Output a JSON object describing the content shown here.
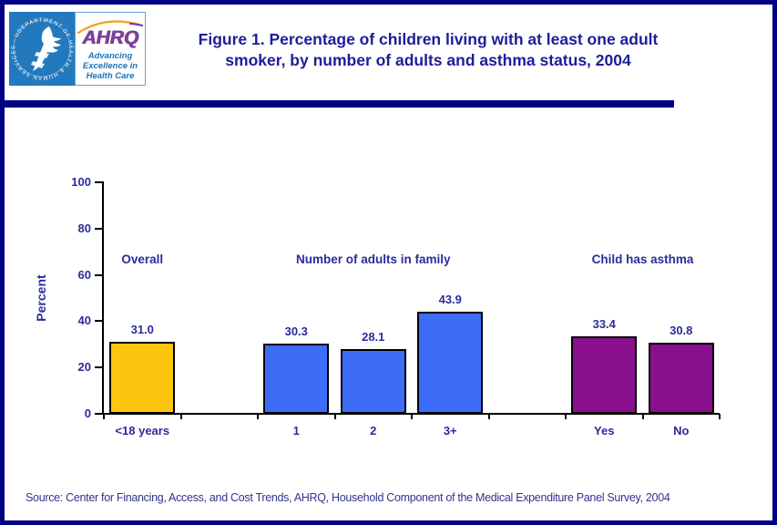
{
  "header": {
    "title_lines": [
      "Figure 1. Percentage of children living with at least one adult",
      "smoker, by number of adults and asthma status, 2004"
    ],
    "title_color": "#1D1D99",
    "logo": {
      "hhs_ring_text": "DEPARTMENT OF HEALTH & HUMAN SERVICES - USA",
      "hhs_bg_color": "#2279BE",
      "ahrq_acronym": "AHRQ",
      "ahrq_color": "#7D4199",
      "tagline_lines": [
        "Advancing",
        "Excellence in",
        "Health Care"
      ],
      "tagline_color": "#1B75BC",
      "swoosh_color": "#F6A01B"
    }
  },
  "chart_data": {
    "type": "bar",
    "title": "",
    "xlabel": "",
    "ylabel": "Percent",
    "ylim": [
      0,
      100
    ],
    "yticks": [
      0,
      20,
      40,
      60,
      80,
      100
    ],
    "grid": false,
    "legend": "none",
    "categories": [
      "<18 years",
      "1",
      "2",
      "3+",
      "Yes",
      "No"
    ],
    "values": [
      31.0,
      30.3,
      28.1,
      43.9,
      33.4,
      30.8
    ],
    "value_labels": [
      "31.0",
      "30.3",
      "28.1",
      "43.9",
      "33.4",
      "30.8"
    ],
    "bar_colors": [
      "#FEC50F",
      "#3D6CF7",
      "#3D6CF7",
      "#3D6CF7",
      "#8A0F8C",
      "#8A0F8C"
    ],
    "groups": [
      {
        "label": "Overall",
        "members": [
          0
        ]
      },
      {
        "label": "Number of adults in family",
        "members": [
          1,
          2,
          3
        ]
      },
      {
        "label": "Child has asthma",
        "members": [
          4,
          5
        ]
      }
    ]
  },
  "footer": {
    "source": "Source: Center for Financing, Access, and Cost Trends, AHRQ, Household Component of the Medical Expenditure Panel Survey, 2004"
  }
}
